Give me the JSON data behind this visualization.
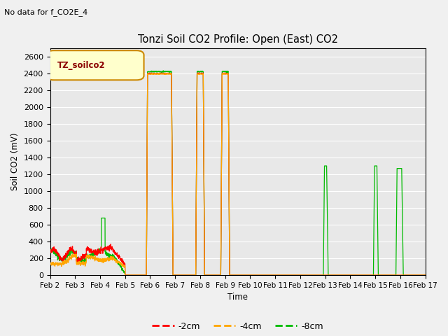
{
  "title": "Tonzi Soil CO2 Profile: Open (East) CO2",
  "subtitle": "No data for f_CO2E_4",
  "ylabel": "Soil CO2 (mV)",
  "xlabel": "Time",
  "legend_label": "TZ_soilco2",
  "ylim": [
    0,
    2700
  ],
  "yticks": [
    0,
    200,
    400,
    600,
    800,
    1000,
    1200,
    1400,
    1600,
    1800,
    2000,
    2200,
    2400,
    2600
  ],
  "series_labels": [
    "-2cm",
    "-4cm",
    "-8cm"
  ],
  "series_colors": [
    "#ff0000",
    "#ffa500",
    "#00bb00"
  ],
  "fig_bg": "#f0f0f0",
  "plot_bg": "#e8e8e8",
  "grid_color": "#ffffff"
}
